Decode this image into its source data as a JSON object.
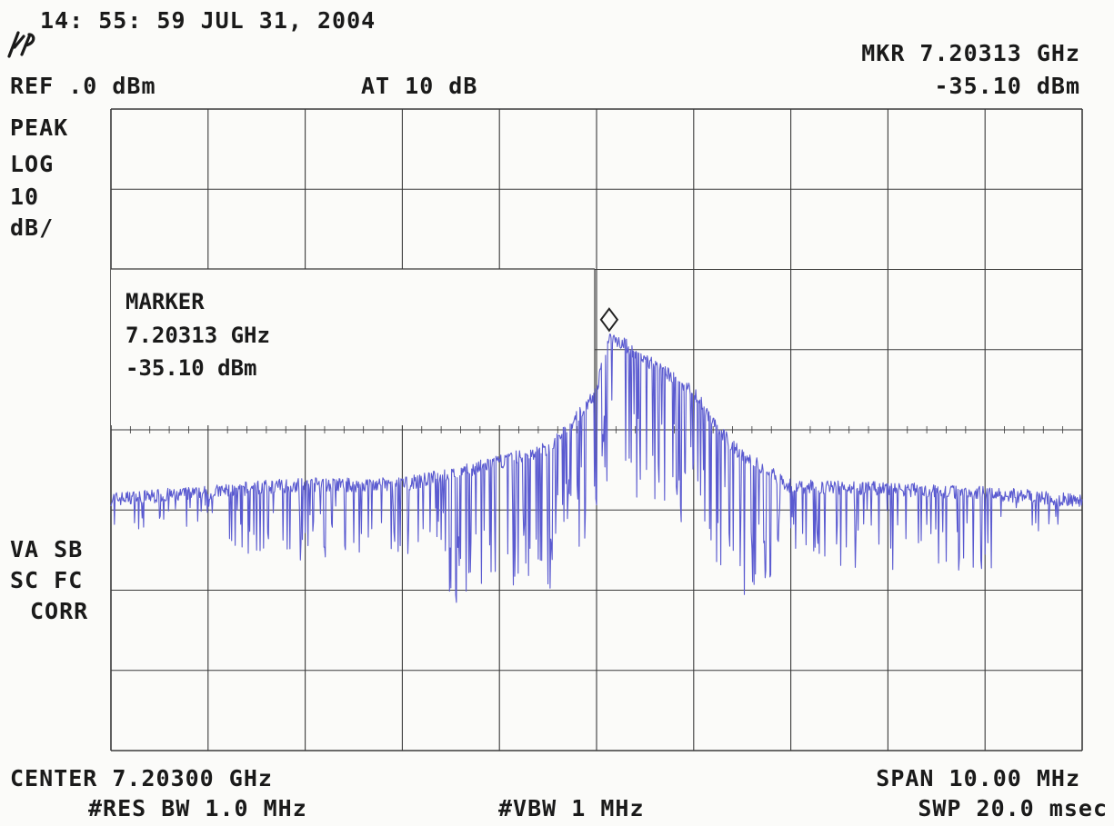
{
  "header": {
    "timestamp": "14: 55: 59 JUL 31, 2004",
    "ref_level": "REF .0 dBm",
    "attenuation": "AT 10 dB",
    "marker_freq": "MKR 7.20313 GHz",
    "marker_amp": "-35.10 dBm"
  },
  "left_labels": {
    "detector": "PEAK",
    "scale_type": "LOG",
    "scale_value": "10",
    "scale_unit": "dB/",
    "flag1": "VA SB",
    "flag2": "SC FC",
    "flag3": "CORR"
  },
  "marker_box": {
    "title": "MARKER",
    "freq": "7.20313 GHz",
    "amp": "-35.10 dBm"
  },
  "footer": {
    "center": "CENTER 7.20300 GHz",
    "span": "SPAN 10.00 MHz",
    "rbw": "#RES BW 1.0 MHz",
    "vbw": "#VBW 1 MHz",
    "sweep": "SWP 20.0 msec"
  },
  "colors": {
    "trace": "#5a5ad0",
    "grid": "#3a3a3a",
    "marker": "#222222"
  },
  "chart_data": {
    "type": "line",
    "title": "",
    "xlabel": "",
    "ylabel": "",
    "xlim": [
      7.198,
      7.208
    ],
    "ylim": [
      -100,
      0
    ],
    "grid": true,
    "x_unit": "GHz",
    "y_unit": "dBm",
    "series": [
      {
        "x": [
          7.198,
          7.1985,
          7.199,
          7.1995,
          7.2,
          7.2005,
          7.201,
          7.2015,
          7.202,
          7.2025,
          7.20275,
          7.203,
          7.20313,
          7.2035,
          7.204,
          7.20425,
          7.2045,
          7.205,
          7.2055,
          7.206,
          7.2065,
          7.207,
          7.2075,
          7.208
        ],
        "y": [
          -60.8,
          -60.3,
          -59.8,
          -59.0,
          -58.5,
          -58.6,
          -58.5,
          -57.0,
          -55.0,
          -53.0,
          -49.0,
          -44.0,
          -35.1,
          -39.0,
          -44.0,
          -50.0,
          -54.0,
          -58.8,
          -59.0,
          -59.2,
          -59.6,
          -59.8,
          -60.5,
          -61.0
        ]
      }
    ],
    "marker": {
      "x": 7.20313,
      "y": -35.1
    }
  }
}
